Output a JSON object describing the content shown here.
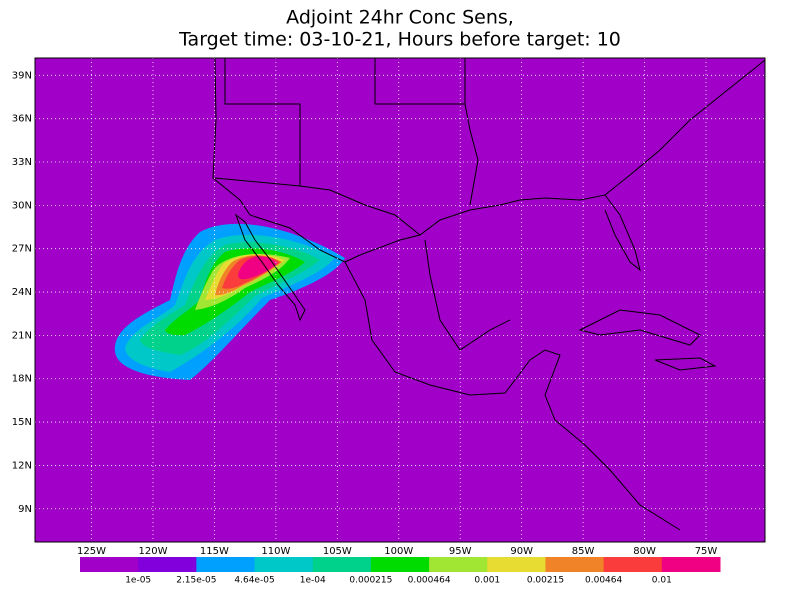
{
  "map": {
    "title": [
      "Adjoint 24hr Conc Sens,",
      "Target time: 03-10-21, Hours before target: 10"
    ],
    "latlim": [
      6.7,
      40.2
    ],
    "lonlim": [
      -129.6,
      -70.2
    ],
    "lat_ticks": [
      {
        "value": 39,
        "label": "39N"
      },
      {
        "value": 36,
        "label": "36N"
      },
      {
        "value": 33,
        "label": "33N"
      },
      {
        "value": 30,
        "label": "30N"
      },
      {
        "value": 27,
        "label": "27N"
      },
      {
        "value": 24,
        "label": "24N"
      },
      {
        "value": 21,
        "label": "21N"
      },
      {
        "value": 18,
        "label": "18N"
      },
      {
        "value": 15,
        "label": "15N"
      },
      {
        "value": 12,
        "label": "12N"
      },
      {
        "value": 9,
        "label": "9N"
      }
    ],
    "lon_ticks": [
      {
        "value": -125,
        "label": "125W"
      },
      {
        "value": -120,
        "label": "120W"
      },
      {
        "value": -115,
        "label": "115W"
      },
      {
        "value": -110,
        "label": "110W"
      },
      {
        "value": -105,
        "label": "105W"
      },
      {
        "value": -100,
        "label": "100W"
      },
      {
        "value": -95,
        "label": "95W"
      },
      {
        "value": -90,
        "label": "90W"
      },
      {
        "value": -85,
        "label": "85W"
      },
      {
        "value": -80,
        "label": "80W"
      },
      {
        "value": -75,
        "label": "75W"
      }
    ],
    "colorbar": {
      "colors": [
        "#a000c8",
        "#8200dc",
        "#00a0ff",
        "#00c8c8",
        "#00d28c",
        "#00dc00",
        "#a0e632",
        "#e6dc32",
        "#f08228",
        "#fa3c3c",
        "#f00082"
      ],
      "labels": [
        "1e-05",
        "2.15e-05",
        "4.64e-05",
        "1e-04",
        "0.000215",
        "0.000464",
        "0.001",
        "0.00215",
        "0.00464",
        "0.01"
      ]
    }
  }
}
